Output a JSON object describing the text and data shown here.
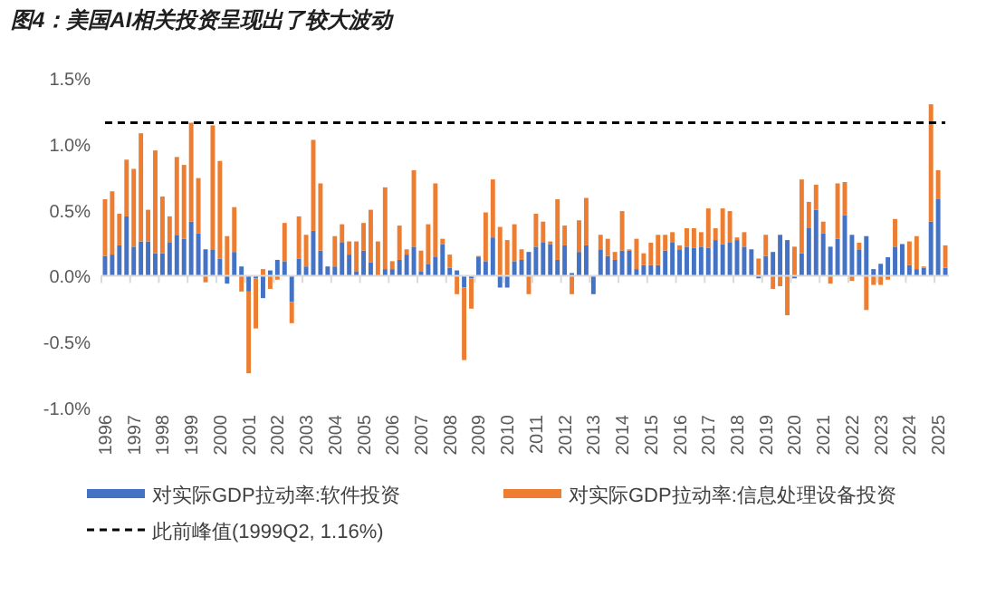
{
  "chart_data": {
    "type": "bar",
    "title": "图4：美国AI相关投资呈现出了较大波动",
    "stacked": true,
    "legend": "bottom",
    "categories": [
      "1996",
      null,
      null,
      null,
      "1997",
      null,
      null,
      null,
      "1998",
      null,
      null,
      null,
      "1999",
      null,
      null,
      null,
      "2000",
      null,
      null,
      null,
      "2001",
      null,
      null,
      null,
      "2002",
      null,
      null,
      null,
      "2003",
      null,
      null,
      null,
      "2004",
      null,
      null,
      null,
      "2005",
      null,
      null,
      null,
      "2006",
      null,
      null,
      null,
      "2007",
      null,
      null,
      null,
      "2008",
      null,
      null,
      null,
      "2009",
      null,
      null,
      null,
      "2010",
      null,
      null,
      null,
      "2011",
      null,
      null,
      null,
      "2012",
      null,
      null,
      null,
      "2013",
      null,
      null,
      null,
      "2014",
      null,
      null,
      null,
      "2015",
      null,
      null,
      null,
      "2016",
      null,
      null,
      null,
      "2017",
      null,
      null,
      null,
      "2018",
      null,
      null,
      null,
      "2019",
      null,
      null,
      null,
      "2020",
      null,
      null,
      null,
      "2021",
      null,
      null,
      null,
      "2022",
      null,
      null,
      null,
      "2023",
      null,
      null,
      null,
      "2024",
      null,
      null,
      null,
      "2025",
      null
    ],
    "series": [
      {
        "name": "对实际GDP拉动率:软件投资",
        "color": "#4472c4",
        "values": [
          0.15,
          0.16,
          0.23,
          0.45,
          0.22,
          0.26,
          0.26,
          0.17,
          0.17,
          0.25,
          0.31,
          0.28,
          0.41,
          0.32,
          0.2,
          0.2,
          0.13,
          -0.06,
          0.18,
          0.07,
          -0.12,
          -0.02,
          -0.17,
          0.04,
          0.12,
          0.11,
          -0.2,
          0.13,
          0.07,
          0.34,
          0.19,
          0.07,
          0.07,
          0.25,
          0.16,
          0.03,
          0.19,
          0.1,
          null,
          0.05,
          0.05,
          0.12,
          0.16,
          0.22,
          0.03,
          0.09,
          0.14,
          0.24,
          0.06,
          0.04,
          -0.09,
          -0.02,
          0.14,
          0.11,
          0.29,
          -0.09,
          -0.09,
          0.11,
          0.12,
          0.18,
          0.22,
          0.25,
          0.24,
          0.12,
          0.23,
          0.02,
          0.18,
          0.23,
          -0.14,
          0.2,
          0.15,
          0.12,
          0.19,
          0.19,
          0.05,
          0.08,
          0.08,
          0.08,
          0.19,
          0.25,
          0.2,
          0.22,
          0.21,
          0.22,
          0.21,
          0.27,
          0.24,
          0.25,
          0.27,
          0.22,
          0.2,
          -0.02,
          0.15,
          0.18,
          0.31,
          0.27,
          -0.02,
          0.17,
          0.36,
          0.5,
          0.32,
          0.22,
          0.28,
          0.46,
          0.31,
          0.2,
          0.3,
          0.05,
          0.09,
          0.14,
          0.22,
          0.24,
          0.08,
          0.05,
          0.06,
          0.41,
          0.58,
          0.06
        ]
      },
      {
        "name": "对实际GDP拉动率:信息处理设备投资",
        "color": "#ed7d31",
        "values": [
          0.43,
          0.48,
          0.24,
          0.43,
          0.59,
          0.82,
          0.24,
          0.78,
          0.43,
          0.2,
          0.59,
          0.56,
          0.75,
          0.42,
          -0.05,
          0.94,
          0.74,
          0.3,
          0.34,
          -0.12,
          -0.62,
          -0.38,
          0.05,
          -0.1,
          -0.03,
          0.29,
          -0.16,
          0.32,
          0.24,
          0.69,
          0.51,
          null,
          0.23,
          0.14,
          0.1,
          0.23,
          0.21,
          0.4,
          0.26,
          0.62,
          0.06,
          0.26,
          0.04,
          0.58,
          0.16,
          0.3,
          0.56,
          0.04,
          0.1,
          -0.14,
          -0.55,
          -0.23,
          0.01,
          0.37,
          0.44,
          0.37,
          0.27,
          0.28,
          0.08,
          -0.14,
          0.25,
          0.16,
          0.02,
          0.46,
          0.15,
          -0.14,
          0.24,
          0.36,
          0.0,
          0.11,
          0.13,
          0.06,
          0.3,
          0.01,
          0.23,
          0.09,
          0.17,
          0.23,
          0.12,
          0.08,
          0.03,
          0.14,
          0.15,
          0.11,
          0.3,
          0.09,
          0.27,
          0.24,
          0.02,
          0.11,
          0.0,
          0.13,
          0.16,
          -0.1,
          -0.08,
          -0.3,
          0.22,
          0.56,
          0.2,
          0.19,
          0.09,
          -0.06,
          0.42,
          0.25,
          -0.04,
          0.05,
          -0.26,
          -0.07,
          -0.07,
          -0.03,
          0.21,
          0.0,
          0.18,
          0.25,
          0.01,
          0.89,
          0.22,
          0.17
        ]
      }
    ],
    "ylim": [
      -1.0,
      1.5
    ],
    "yticks": [
      {
        "value": -1.0,
        "label": "-1.0%"
      },
      {
        "value": -0.5,
        "label": "-0.5%"
      },
      {
        "value": 0.0,
        "label": "0.0%"
      },
      {
        "value": 0.5,
        "label": "0.5%"
      },
      {
        "value": 1.0,
        "label": "1.0%"
      },
      {
        "value": 1.5,
        "label": "1.5%"
      }
    ],
    "ref_lines": [
      {
        "axis": "y",
        "value": 1.16,
        "label": "此前峰值(1999Q2, 1.16%)",
        "color": "#000000",
        "line_style": "dashed"
      }
    ]
  }
}
